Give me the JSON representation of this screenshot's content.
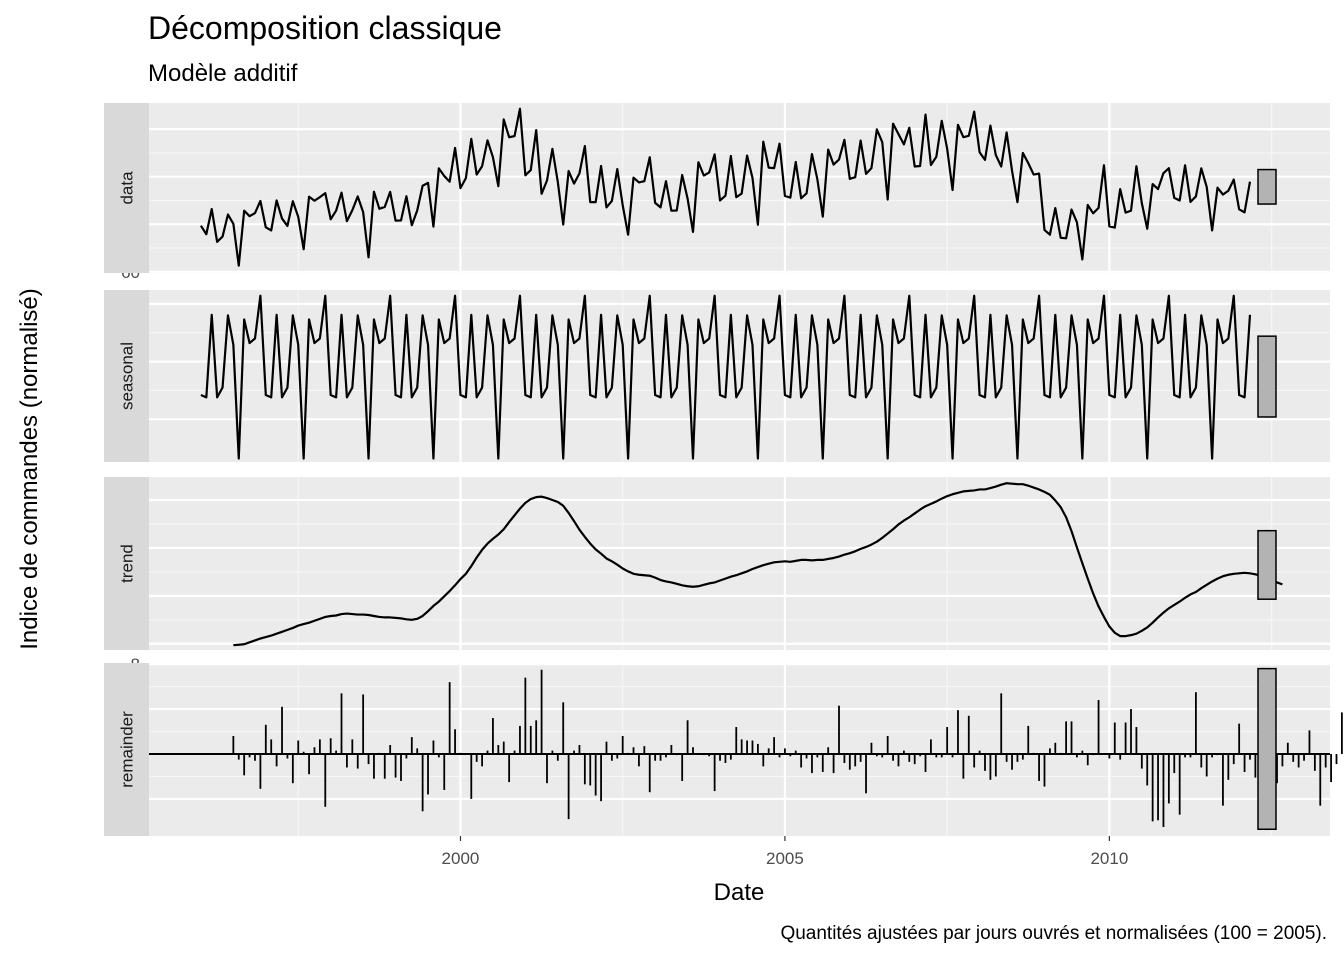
{
  "chart_data": {
    "type": "line",
    "title": "Décomposition classique",
    "subtitle": "Modèle additif",
    "xlabel": "Date",
    "ylabel": "Indice de commandes (normalisé)",
    "caption": "Quantités ajustées par jours ouvrés et normalisées (100 = 2005).",
    "grid": true,
    "x_ticks": [
      "2000",
      "2005",
      "2010"
    ],
    "x_tick_values": [
      2000,
      2005,
      2010
    ],
    "xlim": [
      1995.2,
      2013.4
    ],
    "x_start": 1996.0,
    "x_step": 0.0833333,
    "panels": [
      {
        "name": "data",
        "geom": "line",
        "ylim": [
          59.5,
          131
        ],
        "y_ticks": [
          60,
          80,
          100,
          120
        ],
        "range_bar": [
          88.5,
          103
        ],
        "values": [
          79.4,
          75.8,
          86.4,
          72.6,
          74.8,
          84.1,
          80.2,
          62.6,
          85.7,
          83.4,
          84.7,
          89.8,
          78.7,
          77.4,
          90,
          82.4,
          79.3,
          89.7,
          83.1,
          69.5,
          91.6,
          89.9,
          91.4,
          93.1,
          82.1,
          85.7,
          93.3,
          81.3,
          85.9,
          91.7,
          85.1,
          66.1,
          93.7,
          86.5,
          87.3,
          93.6,
          81.5,
          81.6,
          91.8,
          79.6,
          85.8,
          96.2,
          97.4,
          79,
          103.5,
          100.3,
          97.9,
          112.1,
          95.2,
          99.4,
          115.9,
          100.9,
          104.4,
          115.3,
          108.2,
          96,
          124.1,
          116.6,
          117.1,
          128.6,
          100.6,
          102.8,
          119.6,
          92.8,
          98.4,
          111.7,
          97.8,
          79.9,
          102.4,
          97.1,
          101.4,
          112.9,
          89.3,
          89.3,
          104.5,
          87.1,
          89.8,
          103.2,
          88,
          75.6,
          99.6,
          97.6,
          98.1,
          108.2,
          89,
          87.1,
          98.1,
          85.7,
          85.8,
          100.7,
          90.8,
          76.8,
          106.1,
          100.5,
          101.8,
          109.4,
          90,
          92,
          108.7,
          91.4,
          92.9,
          108.9,
          99.5,
          79.8,
          114.7,
          103.8,
          103.6,
          113.9,
          91.9,
          91.2,
          106.2,
          90.9,
          93,
          109.5,
          98.9,
          83.2,
          111.4,
          105.1,
          107.2,
          115.5,
          99.1,
          99.8,
          115.2,
          101.2,
          103.6,
          119.9,
          114.5,
          90.4,
          122.3,
          117.9,
          113.6,
          120.6,
          104.3,
          104.5,
          126.1,
          104.9,
          108.4,
          123.5,
          111.8,
          94.4,
          121.8,
          116.6,
          117.2,
          127.4,
          110.3,
          107.1,
          121.5,
          109.1,
          104.3,
          118.6,
          102.5,
          89.3,
          110,
          105.7,
          100.9,
          101.3,
          77.6,
          75.6,
          86.8,
          74.3,
          74.1,
          86.2,
          80.8,
          65.2,
          88.1,
          84.6,
          86.9,
          104.8,
          79.1,
          78.6,
          94.8,
          84.9,
          85.7,
          104.4,
          88.9,
          78.1,
          96.9,
          94.8,
          101.5,
          103.6,
          91.1,
          90,
          104.8,
          89.4,
          91.7,
          103.5,
          95.7,
          77.4,
          95.4,
          92.5,
          94.1,
          98.8,
          86.3,
          85,
          97.9
        ]
      },
      {
        "name": "seasonal",
        "geom": "line",
        "ylim": [
          -17.4,
          12.4
        ],
        "y_ticks": [
          -10,
          0,
          10
        ],
        "range_bar": [
          -9.6,
          4.4
        ],
        "values": [
          -5.8,
          -6.2,
          8.1,
          -6.2,
          -4.5,
          8,
          2.9,
          -16.8,
          7.3,
          3.2,
          4,
          11.4
        ]
      },
      {
        "name": "trend",
        "geom": "line",
        "ylim": [
          78.7,
          114.8
        ],
        "y_ticks": [
          80,
          90,
          100,
          110
        ],
        "range_bar": [
          89.3,
          103.6
        ],
        "start_index": 6,
        "values": [
          79.7,
          79.8,
          79.9,
          80.3,
          80.7,
          81.1,
          81.4,
          81.7,
          82.1,
          82.5,
          82.9,
          83.3,
          83.8,
          84.1,
          84.4,
          84.8,
          85.2,
          85.6,
          85.8,
          85.9,
          86.2,
          86.3,
          86.2,
          86.1,
          86.1,
          86,
          85.8,
          85.6,
          85.5,
          85.5,
          85.4,
          85.3,
          85.1,
          85,
          85.2,
          85.8,
          86.8,
          87.9,
          88.8,
          89.9,
          91,
          92.2,
          93.5,
          94.6,
          96.2,
          98,
          99.6,
          100.9,
          101.9,
          102.8,
          103.9,
          105.4,
          106.8,
          108.2,
          109.4,
          110.2,
          110.6,
          110.7,
          110.4,
          110,
          109.6,
          108.8,
          107.3,
          105.6,
          103.8,
          102.3,
          100.9,
          99.7,
          98.8,
          97.8,
          97.2,
          96.5,
          95.7,
          95.1,
          94.6,
          94.4,
          94.3,
          94.2,
          93.8,
          93.3,
          93,
          92.8,
          92.5,
          92.2,
          92,
          91.9,
          92,
          92.3,
          92.6,
          92.8,
          93.2,
          93.6,
          94,
          94.3,
          94.7,
          95.1,
          95.6,
          96,
          96.4,
          96.7,
          97,
          97.1,
          97.2,
          97.1,
          97.3,
          97.5,
          97.5,
          97.4,
          97.5,
          97.5,
          97.7,
          97.9,
          98.2,
          98.6,
          98.9,
          99.3,
          99.8,
          100.2,
          100.7,
          101.3,
          102.1,
          103,
          103.9,
          104.9,
          105.7,
          106.4,
          107.2,
          108,
          108.7,
          109.2,
          109.7,
          110.3,
          110.8,
          111.2,
          111.5,
          111.8,
          111.9,
          112,
          112.2,
          112.2,
          112.5,
          112.8,
          113.2,
          113.5,
          113.4,
          113.3,
          113.3,
          113,
          112.6,
          112.2,
          111.7,
          111.1,
          109.9,
          108.5,
          106.4,
          103.5,
          100.1,
          96.8,
          93.6,
          90.5,
          87.8,
          85.6,
          83.6,
          82.3,
          81.6,
          81.6,
          81.8,
          82.1,
          82.7,
          83.4,
          84.4,
          85.5,
          86.5,
          87.4,
          88.1,
          88.8,
          89.6,
          90.3,
          90.8,
          91.6,
          92.3,
          93,
          93.6,
          94.1,
          94.4,
          94.6,
          94.7,
          94.8,
          94.7,
          94.5,
          94.2,
          93.7,
          93.2,
          92.8,
          92.4
        ]
      },
      {
        "name": "remainder",
        "geom": "bar",
        "ylim": [
          -7.3,
          8.1
        ],
        "y_ticks": [
          -4,
          0,
          4,
          8
        ],
        "range_bar": [
          -6.7,
          7.6
        ],
        "start_index": 6,
        "values": [
          1.6,
          -0.5,
          -1.9,
          -0.3,
          -0.6,
          -3.1,
          2.6,
          1.3,
          -1.1,
          4.2,
          -0.4,
          -2.6,
          1.2,
          0.2,
          -1.8,
          0.6,
          1.3,
          -4.7,
          1.4,
          0.3,
          5.4,
          -1.2,
          1.3,
          -1.3,
          5.3,
          -0.9,
          -2.2,
          0.1,
          -2.2,
          0.8,
          -2.1,
          -2.4,
          -0.4,
          1.5,
          0.5,
          -5.1,
          -3.6,
          1.2,
          -0.3,
          -3.2,
          6.4,
          2.2,
          0.1,
          0,
          -4,
          -0.7,
          -1.1,
          0.3,
          3.2,
          0.8,
          1.1,
          -2.5,
          0.3,
          2.5,
          6.8,
          2.5,
          3,
          7.5,
          -2.6,
          0.3,
          -0.6,
          4.6,
          -5.8,
          0.3,
          0.8,
          -2.7,
          -2.8,
          -3.7,
          -4.2,
          1.1,
          -0.6,
          -0.4,
          1.6,
          0.1,
          0.6,
          -1.1,
          0.7,
          -3.4,
          -0.6,
          -0.6,
          -0.3,
          0.8,
          -0.1,
          -2.4,
          3,
          0.6,
          0,
          -0.1,
          -0.2,
          -3.3,
          -0.6,
          -0.8,
          -0.5,
          2.4,
          1.3,
          1.2,
          1.2,
          0.9,
          -1.1,
          0.5,
          1.5,
          -0.3,
          0.5,
          -0.2,
          0.3,
          -1.2,
          -0.4,
          -1.7,
          -0.3,
          -1.6,
          0.6,
          -1.7,
          4.3,
          -0.8,
          -1.4,
          -1.1,
          -0.7,
          -3.5,
          1,
          -0.2,
          -0.3,
          1.6,
          -0.6,
          -1.1,
          0.3,
          -0.7,
          -0.9,
          -0.2,
          -1.6,
          1.3,
          -0.3,
          -0.3,
          2.4,
          -0.3,
          3.9,
          -2.2,
          3.4,
          -1.2,
          0.3,
          -1.5,
          -2.3,
          -2,
          5.4,
          -0.7,
          -1.4,
          -0.7,
          -0.5,
          2.5,
          0.1,
          -2.4,
          -2.9,
          0.5,
          1,
          0.1,
          2.9,
          2.9,
          -0.3,
          0.3,
          -1,
          -0.1,
          4.8,
          0,
          -0.4,
          2.8,
          -0.5,
          2.8,
          4,
          2.4,
          -1.3,
          -2.8,
          -6,
          -5.9,
          -6.5,
          -4.4,
          -1.7,
          -5.4,
          -0.3,
          -0.3,
          5.5,
          -1.2,
          -2,
          -0.3,
          -0.1,
          -4.6,
          -2.3,
          -0.9,
          2.7,
          -1.6,
          -0.5,
          -2.1,
          0.6,
          -0.5,
          -1.7,
          -2.6,
          -1.1,
          1,
          -0.7,
          -1.2,
          -0.6,
          2.1,
          -1.5,
          -4.6,
          -1.2,
          -2.5,
          -0.9,
          3.7,
          -0.1,
          -0.8,
          3.5
        ]
      }
    ]
  }
}
